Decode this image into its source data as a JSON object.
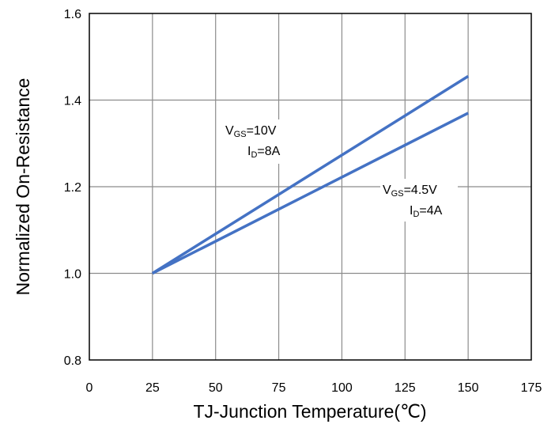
{
  "chart_data": {
    "type": "line",
    "title": "",
    "xlabel": "TJ-Junction Temperature(℃)",
    "ylabel": "Normalized On-Resistance",
    "xlim": [
      0,
      175
    ],
    "ylim": [
      0.8,
      1.6
    ],
    "xticks": [
      "0",
      "25",
      "50",
      "75",
      "100",
      "125",
      "150",
      "175"
    ],
    "yticks": [
      "0.8",
      "1.0",
      "1.2",
      "1.4",
      "1.6"
    ],
    "grid": true,
    "legend": "none",
    "line_color": "#4472C4",
    "series": [
      {
        "x": [
          25,
          150
        ],
        "y": [
          1.0,
          1.455
        ]
      },
      {
        "x": [
          25,
          150
        ],
        "y": [
          1.0,
          1.37
        ]
      }
    ],
    "annotations": [
      {
        "lines": [
          {
            "main": "V",
            "sub": "GS",
            "rest": "=10V"
          },
          {
            "main": "I",
            "sub": "D",
            "rest": "=8A"
          }
        ]
      },
      {
        "lines": [
          {
            "main": "V",
            "sub": "GS",
            "rest": "=4.5V"
          },
          {
            "main": "I",
            "sub": "D",
            "rest": "=4A"
          }
        ]
      }
    ]
  }
}
